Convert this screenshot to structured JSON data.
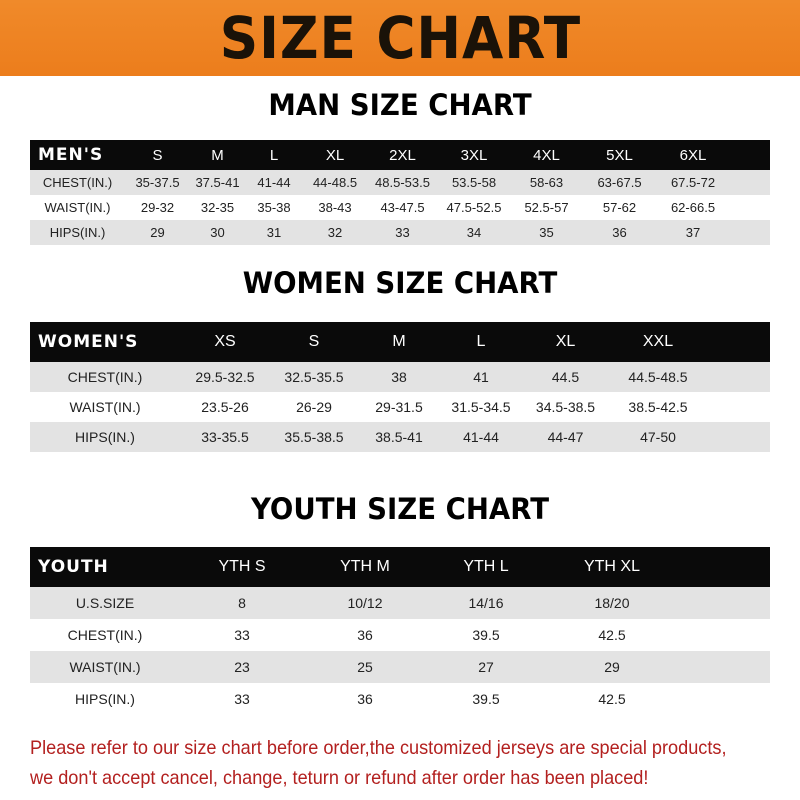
{
  "banner": {
    "title": "SIZE CHART",
    "color": "#ec7d1c"
  },
  "men": {
    "title": "MAN SIZE CHART",
    "header": [
      "MEN'S",
      "S",
      "M",
      "L",
      "XL",
      "2XL",
      "3XL",
      "4XL",
      "5XL",
      "6XL"
    ],
    "rows": [
      [
        "CHEST(IN.)",
        "35-37.5",
        "37.5-41",
        "41-44",
        "44-48.5",
        "48.5-53.5",
        "53.5-58",
        "58-63",
        "63-67.5",
        "67.5-72"
      ],
      [
        "WAIST(IN.)",
        "29-32",
        "32-35",
        "35-38",
        "38-43",
        "43-47.5",
        "47.5-52.5",
        "52.5-57",
        "57-62",
        "62-66.5"
      ],
      [
        "HIPS(IN.)",
        "29",
        "30",
        "31",
        "32",
        "33",
        "34",
        "35",
        "36",
        "37"
      ]
    ]
  },
  "women": {
    "title": "WOMEN SIZE CHART",
    "header": [
      "WOMEN'S",
      "XS",
      "S",
      "M",
      "L",
      "XL",
      "XXL"
    ],
    "rows": [
      [
        "CHEST(IN.)",
        "29.5-32.5",
        "32.5-35.5",
        "38",
        "41",
        "44.5",
        "44.5-48.5"
      ],
      [
        "WAIST(IN.)",
        "23.5-26",
        "26-29",
        "29-31.5",
        "31.5-34.5",
        "34.5-38.5",
        "38.5-42.5"
      ],
      [
        "HIPS(IN.)",
        "33-35.5",
        "35.5-38.5",
        "38.5-41",
        "41-44",
        "44-47",
        "47-50"
      ]
    ]
  },
  "youth": {
    "title": "YOUTH SIZE CHART",
    "header": [
      "YOUTH",
      "YTH S",
      "YTH M",
      "YTH L",
      "YTH XL"
    ],
    "rows": [
      [
        "U.S.SIZE",
        "8",
        "10/12",
        "14/16",
        "18/20"
      ],
      [
        "CHEST(IN.)",
        "33",
        "36",
        "39.5",
        "42.5"
      ],
      [
        "WAIST(IN.)",
        "23",
        "25",
        "27",
        "29"
      ],
      [
        "HIPS(IN.)",
        "33",
        "36",
        "39.5",
        "42.5"
      ]
    ]
  },
  "footer": {
    "line1": "Please refer to our size chart before order,the customized jerseys are special products,",
    "line2": "we don't accept cancel, change, teturn or refund after order has been placed!",
    "color": "#b3201f"
  }
}
